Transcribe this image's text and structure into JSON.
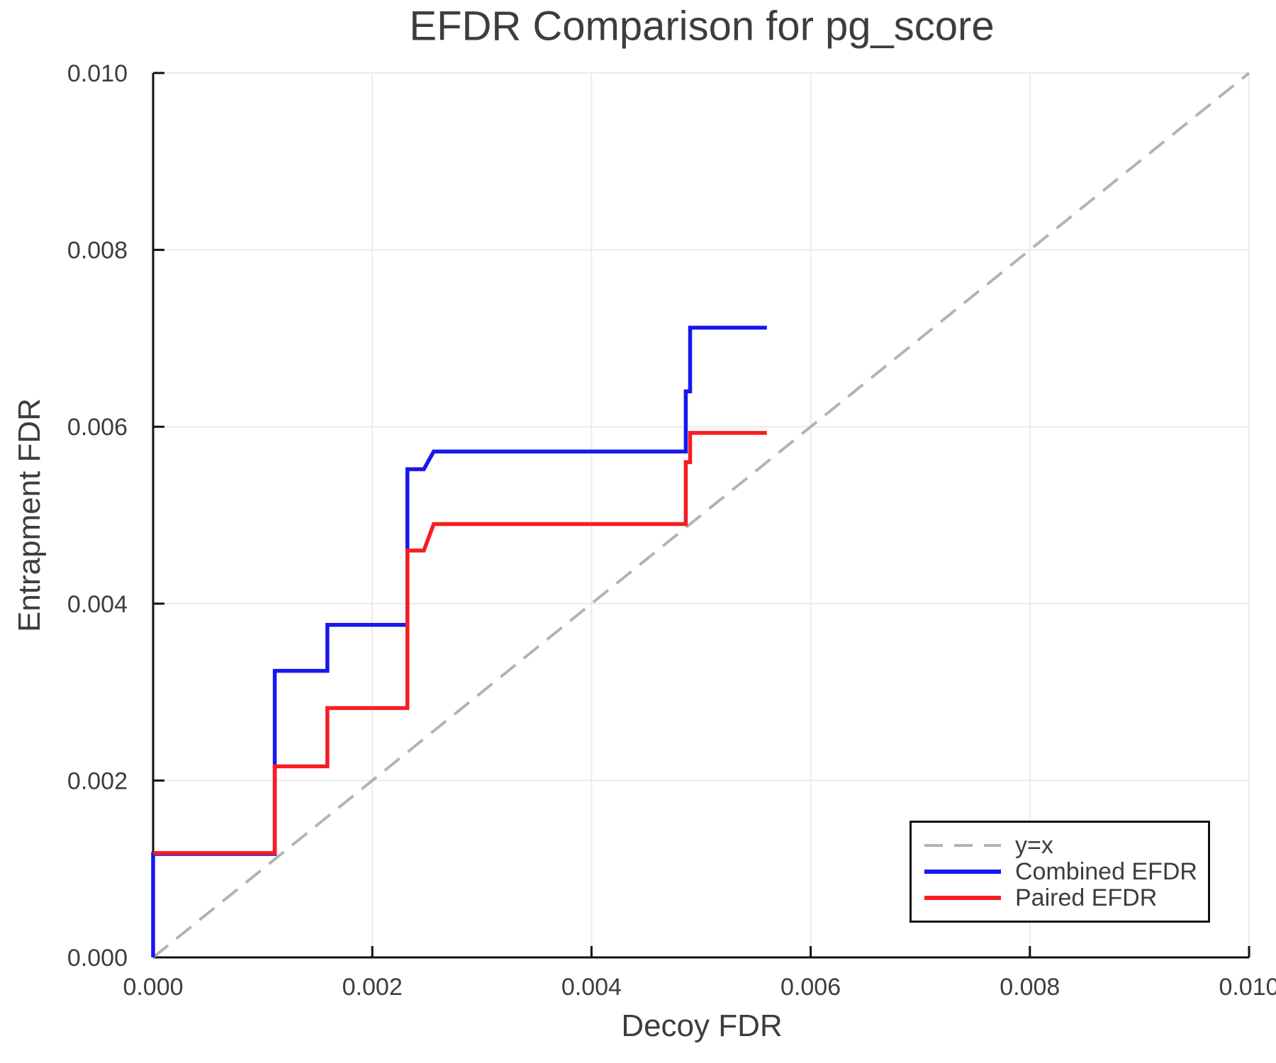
{
  "chart_data": {
    "type": "line",
    "subtype": "step",
    "title": "EFDR Comparison for pg_score",
    "xlabel": "Decoy FDR",
    "ylabel": "Entrapment FDR",
    "xlim": [
      0.0,
      0.01
    ],
    "ylim": [
      0.0,
      0.01
    ],
    "grid": true,
    "legend_position": "bottom-right",
    "axis_color": "#111111",
    "grid_color": "#ebebeb",
    "text_color": "#3d3d3d",
    "xticks": {
      "values": [
        0.0,
        0.002,
        0.004,
        0.006,
        0.008,
        0.01
      ],
      "labels": [
        "0.000",
        "0.002",
        "0.004",
        "0.006",
        "0.008",
        "0.010"
      ]
    },
    "yticks": {
      "values": [
        0.0,
        0.002,
        0.004,
        0.006,
        0.008,
        0.01
      ],
      "labels": [
        "0.000",
        "0.002",
        "0.004",
        "0.006",
        "0.008",
        "0.010"
      ]
    },
    "diagonal": {
      "label": "y=x",
      "color": "#b3b3b3",
      "style": "dashed",
      "from": [
        0.0,
        0.0
      ],
      "to": [
        0.01,
        0.01
      ]
    },
    "series": [
      {
        "name": "Combined EFDR",
        "color": "#1717f0",
        "points": [
          [
            0.0,
            0.0
          ],
          [
            0.0,
            0.00117
          ],
          [
            0.00111,
            0.00117
          ],
          [
            0.00111,
            0.00324
          ],
          [
            0.00159,
            0.00324
          ],
          [
            0.00159,
            0.00376
          ],
          [
            0.00232,
            0.00376
          ],
          [
            0.00232,
            0.00552
          ],
          [
            0.00247,
            0.00552
          ],
          [
            0.00256,
            0.00572
          ],
          [
            0.00486,
            0.00572
          ],
          [
            0.00486,
            0.0064
          ],
          [
            0.0049,
            0.0064
          ],
          [
            0.0049,
            0.00712
          ],
          [
            0.0056,
            0.00712
          ]
        ]
      },
      {
        "name": "Paired EFDR",
        "color": "#f71d1f",
        "points": [
          [
            0.0,
            0.00118
          ],
          [
            0.00111,
            0.00118
          ],
          [
            0.00111,
            0.00216
          ],
          [
            0.00159,
            0.00216
          ],
          [
            0.00159,
            0.00282
          ],
          [
            0.00232,
            0.00282
          ],
          [
            0.00232,
            0.0046
          ],
          [
            0.00247,
            0.0046
          ],
          [
            0.00256,
            0.0049
          ],
          [
            0.00486,
            0.0049
          ],
          [
            0.00486,
            0.0056
          ],
          [
            0.0049,
            0.0056
          ],
          [
            0.0049,
            0.00593
          ],
          [
            0.0056,
            0.00593
          ]
        ]
      }
    ]
  }
}
